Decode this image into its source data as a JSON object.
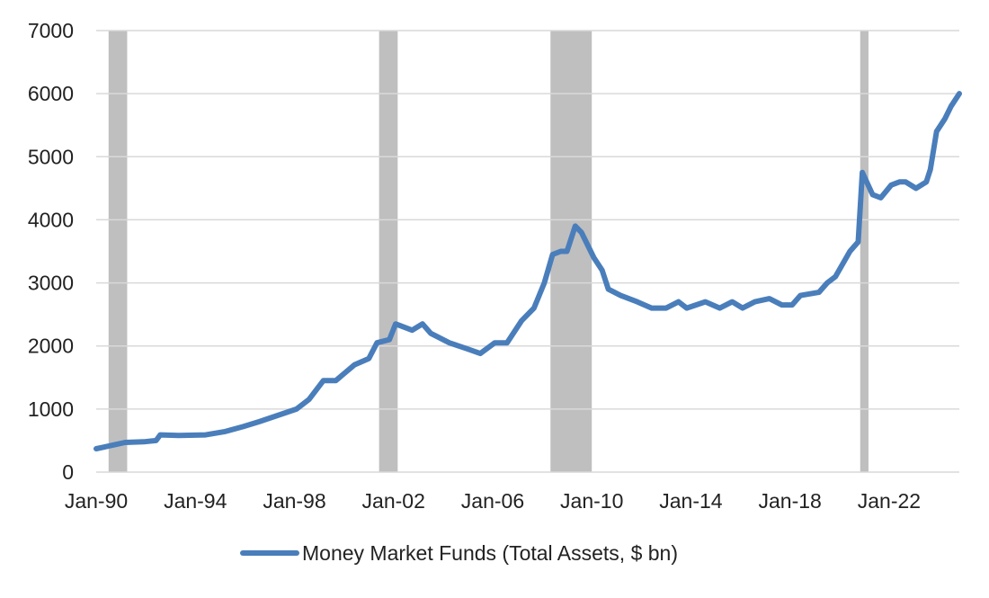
{
  "chart_data": {
    "type": "line",
    "title": "",
    "xlabel": "",
    "ylabel": "",
    "ylim": [
      0,
      7000
    ],
    "yticks": [
      0,
      1000,
      2000,
      3000,
      4000,
      5000,
      6000,
      7000
    ],
    "xlim": [
      "1990-01",
      "2024-11"
    ],
    "xticks": [
      {
        "date": "1990-01",
        "label": "Jan-90"
      },
      {
        "date": "1994-01",
        "label": "Jan-94"
      },
      {
        "date": "1998-01",
        "label": "Jan-98"
      },
      {
        "date": "2002-01",
        "label": "Jan-02"
      },
      {
        "date": "2006-01",
        "label": "Jan-06"
      },
      {
        "date": "2010-01",
        "label": "Jan-10"
      },
      {
        "date": "2014-01",
        "label": "Jan-14"
      },
      {
        "date": "2018-01",
        "label": "Jan-18"
      },
      {
        "date": "2022-01",
        "label": "Jan-22"
      }
    ],
    "grid": "horizontal",
    "legend_position": "bottom",
    "colors": {
      "series": "#4a7ebb",
      "shading": "#bfbfbf",
      "grid": "#d9d9d9"
    },
    "shaded_periods": [
      [
        "1990-07",
        "1991-04"
      ],
      [
        "2001-06",
        "2002-03"
      ],
      [
        "2008-05",
        "2010-01"
      ],
      [
        "2020-11",
        "2021-03"
      ]
    ],
    "series": [
      {
        "name": "Money Market Funds (Total Assets, $ bn)",
        "points": [
          [
            "1990-01",
            370
          ],
          [
            "1990-04",
            390
          ],
          [
            "1990-08",
            420
          ],
          [
            "1991-03",
            470
          ],
          [
            "1991-12",
            480
          ],
          [
            "1992-06",
            500
          ],
          [
            "1992-08",
            590
          ],
          [
            "1993-05",
            580
          ],
          [
            "1994-06",
            590
          ],
          [
            "1995-03",
            640
          ],
          [
            "1995-12",
            720
          ],
          [
            "1996-08",
            800
          ],
          [
            "1997-05",
            900
          ],
          [
            "1998-02",
            1000
          ],
          [
            "1998-08",
            1150
          ],
          [
            "1999-03",
            1450
          ],
          [
            "1999-09",
            1450
          ],
          [
            "2000-06",
            1700
          ],
          [
            "2001-01",
            1800
          ],
          [
            "2001-05",
            2050
          ],
          [
            "2001-11",
            2100
          ],
          [
            "2002-02",
            2350
          ],
          [
            "2002-06",
            2300
          ],
          [
            "2002-10",
            2250
          ],
          [
            "2003-03",
            2350
          ],
          [
            "2003-07",
            2200
          ],
          [
            "2004-04",
            2050
          ],
          [
            "2005-01",
            1950
          ],
          [
            "2005-07",
            1880
          ],
          [
            "2006-02",
            2050
          ],
          [
            "2006-08",
            2050
          ],
          [
            "2007-03",
            2400
          ],
          [
            "2007-09",
            2600
          ],
          [
            "2008-02",
            3000
          ],
          [
            "2008-06",
            3450
          ],
          [
            "2008-10",
            3500
          ],
          [
            "2009-01",
            3500
          ],
          [
            "2009-05",
            3900
          ],
          [
            "2009-08",
            3800
          ],
          [
            "2010-02",
            3400
          ],
          [
            "2010-06",
            3200
          ],
          [
            "2010-09",
            2900
          ],
          [
            "2011-03",
            2800
          ],
          [
            "2011-11",
            2700
          ],
          [
            "2012-06",
            2600
          ],
          [
            "2013-01",
            2600
          ],
          [
            "2013-07",
            2700
          ],
          [
            "2013-11",
            2600
          ],
          [
            "2014-08",
            2700
          ],
          [
            "2015-03",
            2600
          ],
          [
            "2015-09",
            2700
          ],
          [
            "2016-02",
            2600
          ],
          [
            "2016-08",
            2700
          ],
          [
            "2017-03",
            2750
          ],
          [
            "2017-09",
            2650
          ],
          [
            "2018-02",
            2650
          ],
          [
            "2018-06",
            2800
          ],
          [
            "2019-03",
            2850
          ],
          [
            "2019-07",
            3000
          ],
          [
            "2019-11",
            3100
          ],
          [
            "2020-06",
            3500
          ],
          [
            "2020-10",
            3650
          ],
          [
            "2020-12",
            4750
          ],
          [
            "2021-05",
            4400
          ],
          [
            "2021-09",
            4350
          ],
          [
            "2022-02",
            4550
          ],
          [
            "2022-06",
            4600
          ],
          [
            "2022-09",
            4600
          ],
          [
            "2023-02",
            4500
          ],
          [
            "2023-07",
            4600
          ],
          [
            "2023-09",
            4800
          ],
          [
            "2023-12",
            5400
          ],
          [
            "2024-04",
            5600
          ],
          [
            "2024-07",
            5800
          ],
          [
            "2024-11",
            6000
          ]
        ]
      }
    ]
  }
}
